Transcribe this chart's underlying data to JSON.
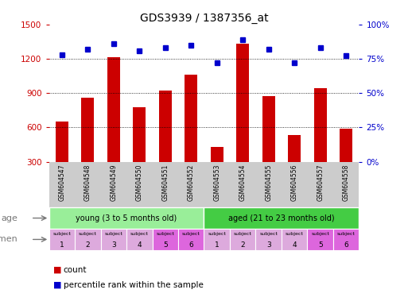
{
  "title": "GDS3939 / 1387356_at",
  "samples": [
    "GSM604547",
    "GSM604548",
    "GSM604549",
    "GSM604550",
    "GSM604551",
    "GSM604552",
    "GSM604553",
    "GSM604554",
    "GSM604555",
    "GSM604556",
    "GSM604557",
    "GSM604558"
  ],
  "counts": [
    650,
    860,
    1215,
    775,
    920,
    1060,
    430,
    1330,
    875,
    530,
    940,
    590
  ],
  "percentiles": [
    78,
    82,
    86,
    81,
    83,
    85,
    72,
    89,
    82,
    72,
    83,
    77
  ],
  "ylim_left": [
    300,
    1500
  ],
  "ylim_right": [
    0,
    100
  ],
  "yticks_left": [
    300,
    600,
    900,
    1200,
    1500
  ],
  "yticks_right": [
    0,
    25,
    50,
    75,
    100
  ],
  "bar_color": "#cc0000",
  "dot_color": "#0000cc",
  "age_groups": [
    {
      "label": "young (3 to 5 months old)",
      "start": 0,
      "end": 6,
      "color": "#99ee99"
    },
    {
      "label": "aged (21 to 23 months old)",
      "start": 6,
      "end": 12,
      "color": "#44cc44"
    }
  ],
  "specimen_colors_light": "#ddaadd",
  "specimen_colors_dark": "#dd66dd",
  "specimen_light_indices": [
    0,
    1,
    2,
    3,
    6,
    7,
    8,
    9
  ],
  "specimen_dark_indices": [
    4,
    5,
    10,
    11
  ],
  "specimen_numbers": [
    1,
    2,
    3,
    4,
    5,
    6,
    1,
    2,
    3,
    4,
    5,
    6
  ],
  "axis_label_color_left": "#cc0000",
  "axis_label_color_right": "#0000cc",
  "background_color": "#ffffff",
  "plot_bg_color": "#ffffff",
  "xtick_bg_color": "#cccccc",
  "grid_color": "#000000",
  "age_label_color": "#777777",
  "specimen_label_color": "#777777"
}
